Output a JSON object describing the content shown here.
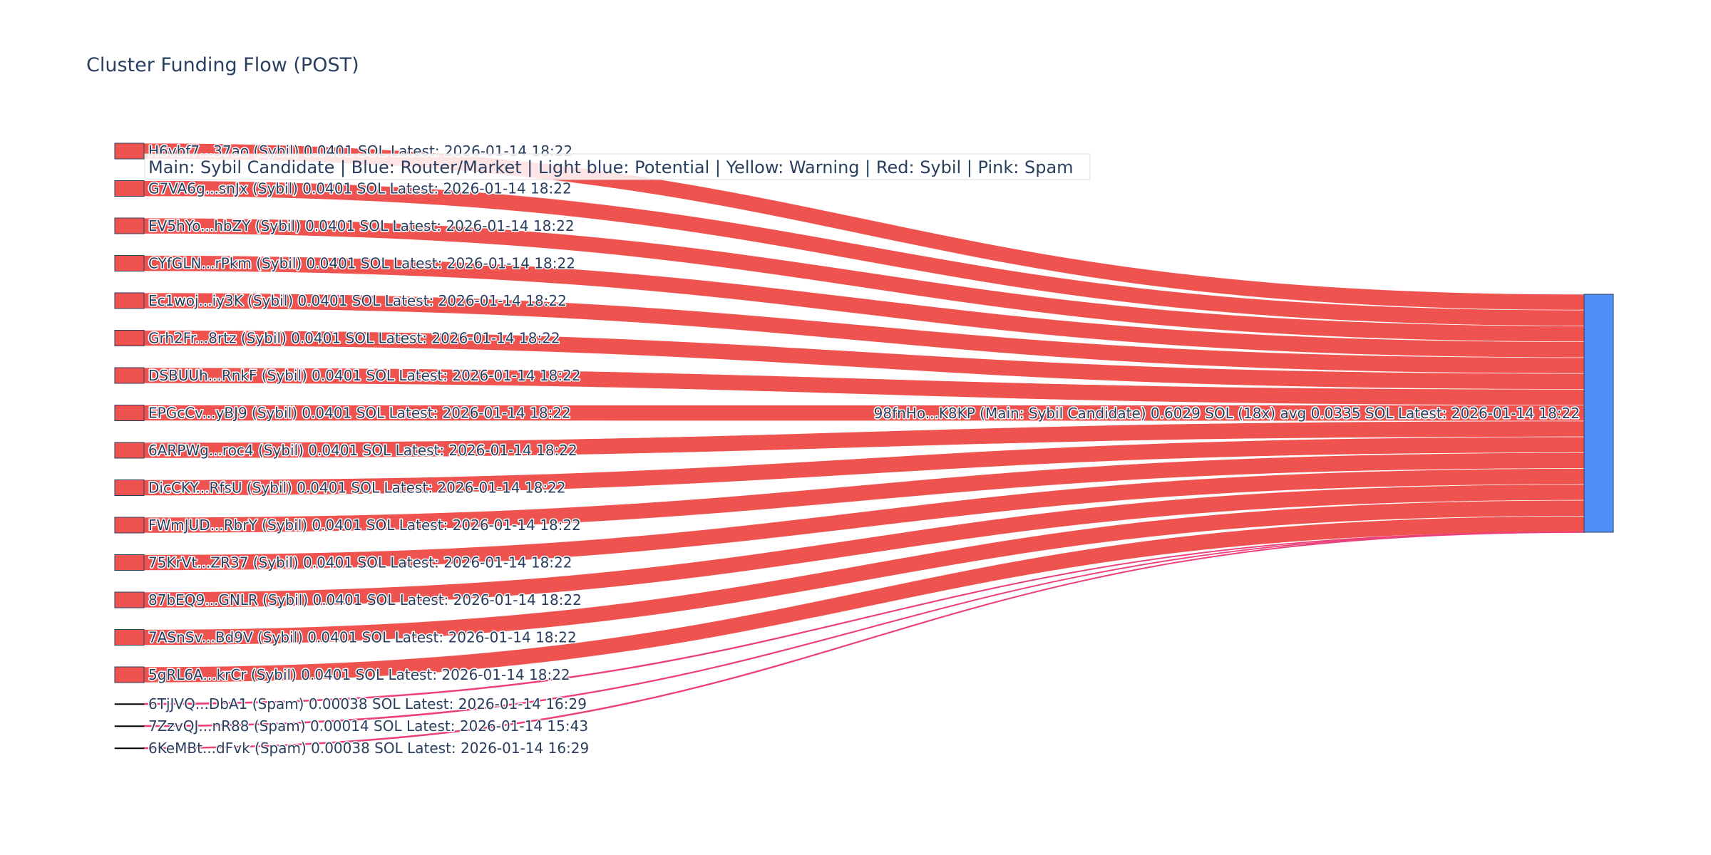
{
  "chart_data": {
    "type": "sankey",
    "title": "Cluster Funding Flow (POST)",
    "legend_note": "Main: Sybil Candidate  |  Blue: Router/Market | Light blue: Potential | Yellow: Warning | Red: Sybil | Pink: Spam",
    "colors": {
      "sybil_node": "#ef5350",
      "sybil_link": "#ef5350",
      "spam_link": "#ec407a",
      "main_node": "#4f8ff7",
      "node_border": "#2a3f5f",
      "text": "#2a3f5f"
    },
    "target": {
      "label": "98fnHo...K8KP (Main: Sybil Candidate) 0.6029 SOL (18x) avg 0.0335 SOL Latest: 2026-01-14 18:22",
      "category": "main",
      "value": 0.6029
    },
    "sources": [
      {
        "label": "H6vbf7...37ao (Sybil) 0.0401 SOL Latest: 2026-01-14 18:22",
        "category": "sybil",
        "value": 0.0401
      },
      {
        "label": "G7VA6g...snJx (Sybil) 0.0401 SOL Latest: 2026-01-14 18:22",
        "category": "sybil",
        "value": 0.0401
      },
      {
        "label": "EV5hYo...hbZY (Sybil) 0.0401 SOL Latest: 2026-01-14 18:22",
        "category": "sybil",
        "value": 0.0401
      },
      {
        "label": "CYfGLN...rPkm (Sybil) 0.0401 SOL Latest: 2026-01-14 18:22",
        "category": "sybil",
        "value": 0.0401
      },
      {
        "label": "Ec1woj...iy3K (Sybil) 0.0401 SOL Latest: 2026-01-14 18:22",
        "category": "sybil",
        "value": 0.0401
      },
      {
        "label": "Grh2Fr...8rtz (Sybil) 0.0401 SOL Latest: 2026-01-14 18:22",
        "category": "sybil",
        "value": 0.0401
      },
      {
        "label": "DSBUUh...RnkF (Sybil) 0.0401 SOL Latest: 2026-01-14 18:22",
        "category": "sybil",
        "value": 0.0401
      },
      {
        "label": "EPGcCv...yBJ9 (Sybil) 0.0401 SOL Latest: 2026-01-14 18:22",
        "category": "sybil",
        "value": 0.0401
      },
      {
        "label": "6ARPWg...roc4 (Sybil) 0.0401 SOL Latest: 2026-01-14 18:22",
        "category": "sybil",
        "value": 0.0401
      },
      {
        "label": "DicCKY...RfsU (Sybil) 0.0401 SOL Latest: 2026-01-14 18:22",
        "category": "sybil",
        "value": 0.0401
      },
      {
        "label": "FWmJUD...RbrY (Sybil) 0.0401 SOL Latest: 2026-01-14 18:22",
        "category": "sybil",
        "value": 0.0401
      },
      {
        "label": "75KrVt...ZR37 (Sybil) 0.0401 SOL Latest: 2026-01-14 18:22",
        "category": "sybil",
        "value": 0.0401
      },
      {
        "label": "87bEQ9...GNLR (Sybil) 0.0401 SOL Latest: 2026-01-14 18:22",
        "category": "sybil",
        "value": 0.0401
      },
      {
        "label": "7ASnSv...Bd9V (Sybil) 0.0401 SOL Latest: 2026-01-14 18:22",
        "category": "sybil",
        "value": 0.0401
      },
      {
        "label": "5gRL6A...krCr (Sybil) 0.0401 SOL Latest: 2026-01-14 18:22",
        "category": "sybil",
        "value": 0.0401
      },
      {
        "label": "6TjJVQ...DbA1 (Spam) 0.00038 SOL Latest: 2026-01-14 16:29",
        "category": "spam",
        "value": 0.00038
      },
      {
        "label": "7ZzvQJ...nR88 (Spam) 0.00014 SOL Latest: 2026-01-14 15:43",
        "category": "spam",
        "value": 0.00014
      },
      {
        "label": "6KeMBt...dFvk (Spam) 0.00038 SOL Latest: 2026-01-14 16:29",
        "category": "spam",
        "value": 0.00038
      }
    ]
  }
}
